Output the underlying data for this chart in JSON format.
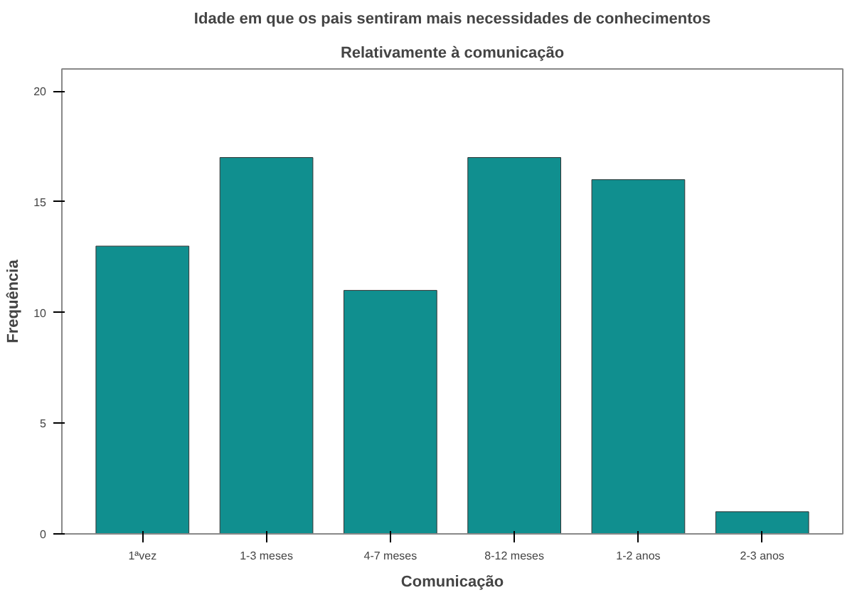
{
  "chart_data": {
    "type": "bar",
    "title": "Idade em que os pais sentiram mais necessidades de conhecimentos",
    "subtitle": "Relativamente à comunicação",
    "xlabel": "Comunicação",
    "ylabel": "Frequência",
    "categories": [
      "1ªvez",
      "1-3 meses",
      "4-7 meses",
      "8-12 meses",
      "1-2 anos",
      "2-3 anos"
    ],
    "values": [
      13,
      17,
      11,
      17,
      16,
      1
    ],
    "color": "#108f8f",
    "ylim": [
      0,
      21
    ],
    "yticks": [
      0,
      5,
      10,
      15,
      20
    ],
    "grid": false
  }
}
